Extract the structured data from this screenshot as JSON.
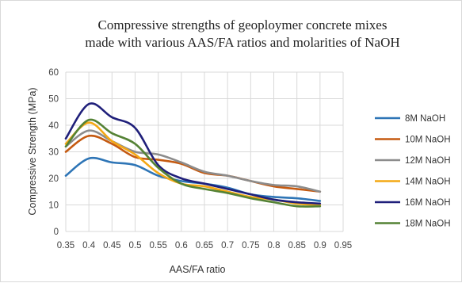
{
  "chart_data": {
    "type": "line",
    "title_line1": "Compressive strengths of geoploymer concrete mixes",
    "title_line2": "made with various AAS/FA ratios and molarities of NaOH",
    "xlabel": "AAS/FA ratio",
    "ylabel": "Compressive Strength (MPa)",
    "xlim": [
      0.35,
      0.95
    ],
    "ylim": [
      0,
      60
    ],
    "xticks": [
      "0.35",
      "0.4",
      "0.45",
      "0.5",
      "0.55",
      "0.6",
      "0.65",
      "0.7",
      "0.75",
      "0.8",
      "0.85",
      "0.9",
      "0.95"
    ],
    "yticks": [
      "0",
      "10",
      "20",
      "30",
      "40",
      "50",
      "60"
    ],
    "grid": true,
    "legend_position": "right",
    "x": [
      0.35,
      0.4,
      0.45,
      0.5,
      0.55,
      0.6,
      0.65,
      0.7,
      0.75,
      0.8,
      0.85,
      0.9
    ],
    "series": [
      {
        "name": "8M NaOH",
        "color": "#2e75b6",
        "values": [
          21,
          27.5,
          26,
          25,
          21,
          19,
          18,
          16.5,
          14,
          13,
          12.5,
          11.5
        ]
      },
      {
        "name": "10M NaOH",
        "color": "#c55a11",
        "values": [
          30,
          36,
          33,
          28,
          27,
          25.5,
          22,
          21,
          19,
          17,
          16,
          15
        ]
      },
      {
        "name": "12M NaOH",
        "color": "#8c8c8c",
        "values": [
          32,
          38,
          34,
          30,
          29,
          26,
          22.5,
          21,
          19,
          17.5,
          17,
          15
        ]
      },
      {
        "name": "14M NaOH",
        "color": "#f4a814",
        "values": [
          33,
          41,
          34,
          29,
          22,
          18,
          17,
          15,
          13,
          12,
          10.5,
          10
        ]
      },
      {
        "name": "16M NaOH",
        "color": "#1f1f7a",
        "values": [
          35,
          48,
          43,
          39,
          25,
          20,
          18,
          16,
          14,
          12,
          11,
          10.5
        ]
      },
      {
        "name": "18M NaOH",
        "color": "#548235",
        "values": [
          32,
          42,
          37,
          33,
          24,
          18,
          16,
          14.5,
          12.5,
          11,
          9.5,
          9.5
        ]
      }
    ]
  }
}
